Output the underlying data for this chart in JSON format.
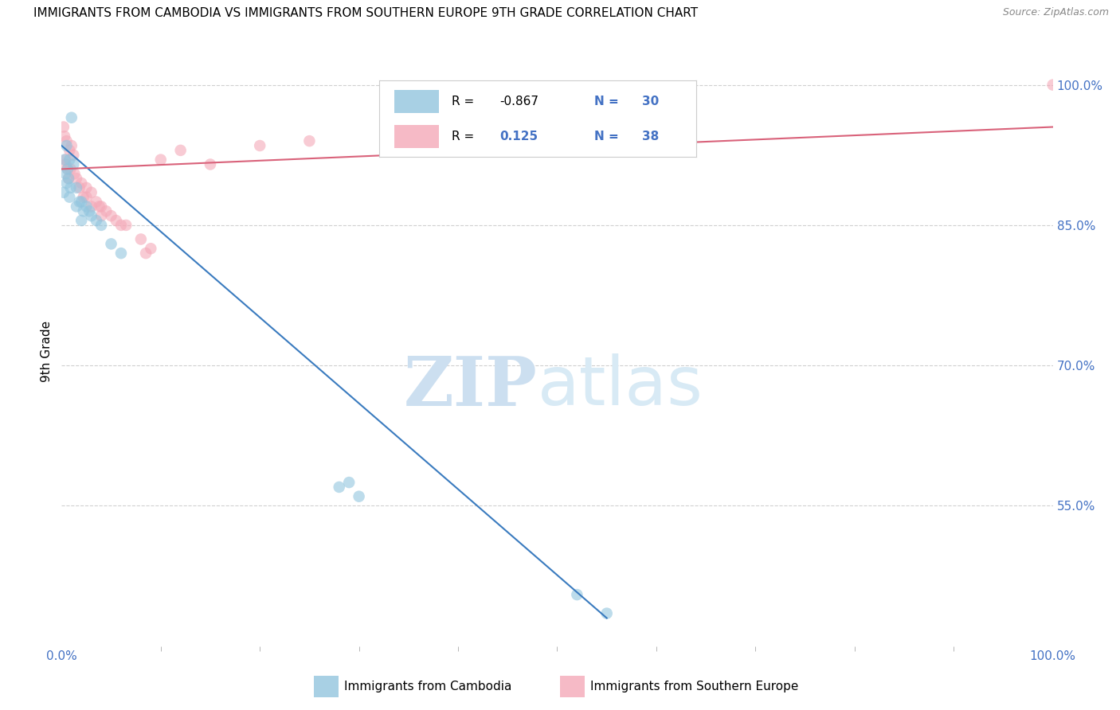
{
  "title": "IMMIGRANTS FROM CAMBODIA VS IMMIGRANTS FROM SOUTHERN EUROPE 9TH GRADE CORRELATION CHART",
  "source": "Source: ZipAtlas.com",
  "ylabel": "9th Grade",
  "blue_label": "Immigrants from Cambodia",
  "pink_label": "Immigrants from Southern Europe",
  "blue_R": -0.867,
  "blue_N": 30,
  "pink_R": 0.125,
  "pink_N": 38,
  "blue_color": "#92c5de",
  "pink_color": "#f4a9b8",
  "blue_line_color": "#3a7bbf",
  "pink_line_color": "#d9627a",
  "blue_scatter_x": [
    0.5,
    1.0,
    0.8,
    1.2,
    0.3,
    0.6,
    0.4,
    0.7,
    0.5,
    0.9,
    1.5,
    0.2,
    0.8,
    2.0,
    2.5,
    3.0,
    3.5,
    4.0,
    2.8,
    5.0,
    6.0,
    1.5,
    2.2,
    2.0,
    1.8,
    28.0,
    30.0,
    29.0,
    52.0,
    55.0
  ],
  "blue_scatter_y": [
    93.5,
    96.5,
    92.0,
    91.5,
    92.0,
    91.0,
    90.5,
    90.0,
    89.5,
    89.0,
    89.0,
    88.5,
    88.0,
    87.5,
    87.0,
    86.0,
    85.5,
    85.0,
    86.5,
    83.0,
    82.0,
    87.0,
    86.5,
    85.5,
    87.5,
    57.0,
    56.0,
    57.5,
    45.5,
    43.5
  ],
  "pink_scatter_x": [
    0.2,
    0.5,
    0.8,
    1.0,
    1.2,
    0.4,
    0.6,
    0.9,
    1.3,
    0.7,
    1.5,
    2.0,
    2.5,
    3.0,
    1.8,
    2.2,
    3.5,
    4.0,
    3.0,
    4.5,
    5.0,
    4.0,
    5.5,
    6.0,
    2.5,
    10.0,
    12.0,
    15.0,
    20.0,
    25.0,
    8.0,
    9.0,
    8.5,
    6.5,
    3.8,
    100.0,
    0.3,
    0.4
  ],
  "pink_scatter_y": [
    95.5,
    94.0,
    93.0,
    93.5,
    92.5,
    91.5,
    91.0,
    91.0,
    90.5,
    90.0,
    90.0,
    89.5,
    89.0,
    88.5,
    89.0,
    88.0,
    87.5,
    87.0,
    87.0,
    86.5,
    86.0,
    86.0,
    85.5,
    85.0,
    88.0,
    92.0,
    93.0,
    91.5,
    93.5,
    94.0,
    83.5,
    82.5,
    82.0,
    85.0,
    87.0,
    100.0,
    94.5,
    92.0
  ],
  "blue_trend_x": [
    0.0,
    55.0
  ],
  "blue_trend_y": [
    93.5,
    43.0
  ],
  "pink_trend_x": [
    0.0,
    100.0
  ],
  "pink_trend_y": [
    91.0,
    95.5
  ],
  "xlim": [
    0,
    100
  ],
  "ylim": [
    40,
    103
  ],
  "right_yticks": [
    55.0,
    70.0,
    85.0,
    100.0
  ],
  "grid_color": "#d0d0d0",
  "watermark_zip_color": "#ccdff0",
  "watermark_atlas_color": "#d8eaf5",
  "background_color": "#ffffff",
  "legend_border_color": "#cccccc",
  "tick_color": "#4472c4",
  "title_fontsize": 11,
  "axis_fontsize": 11,
  "scatter_size": 110,
  "scatter_alpha": 0.6
}
